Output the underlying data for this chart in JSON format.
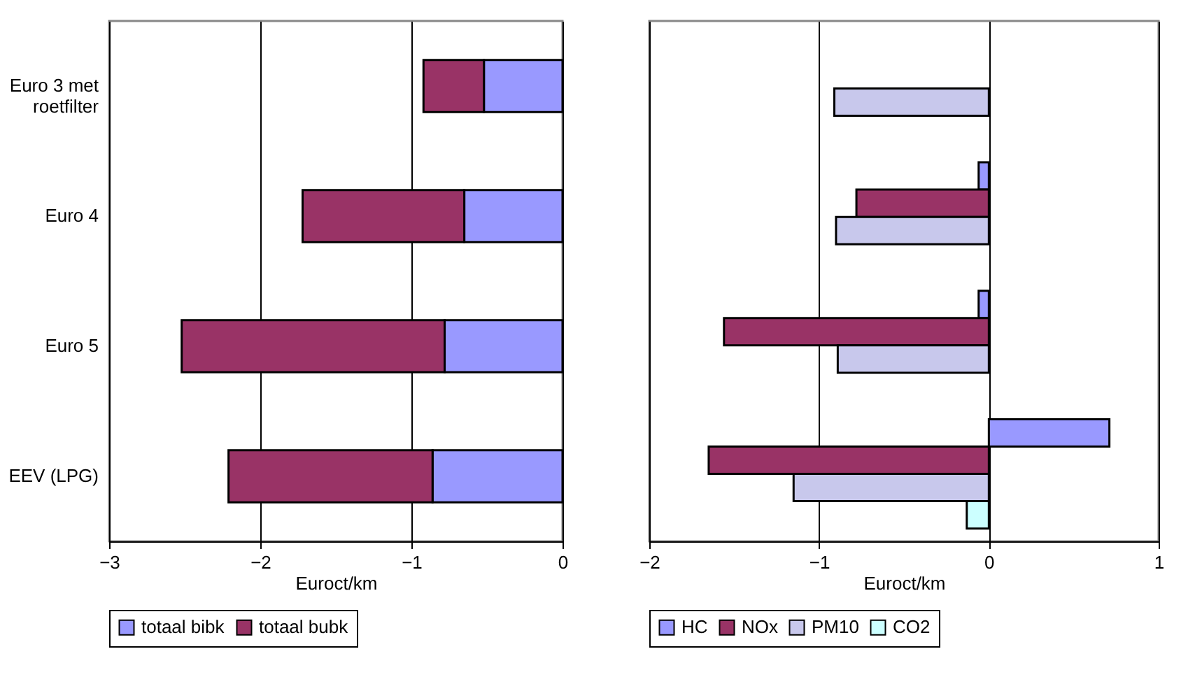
{
  "chart_data": [
    {
      "type": "bar",
      "orientation": "horizontal",
      "stacked": true,
      "xlabel": "Euroct/km",
      "categories": [
        "Euro 3 met roetfilter",
        "Euro 4",
        "Euro 5",
        "EEV (LPG)"
      ],
      "series": [
        {
          "name": "totaal bibk",
          "color": "#9999ff",
          "values": [
            -0.52,
            -0.65,
            -0.78,
            -0.86
          ]
        },
        {
          "name": "totaal bubk",
          "color": "#993366",
          "values": [
            -0.4,
            -1.07,
            -1.74,
            -1.35
          ]
        }
      ],
      "xlim": [
        -3,
        0
      ],
      "xticks": [
        -3,
        -2,
        -1,
        0
      ],
      "grid": "x",
      "legend": "bottom"
    },
    {
      "type": "bar",
      "orientation": "horizontal",
      "xlabel": "Euroct/km",
      "categories": [
        null,
        null,
        null,
        null
      ],
      "series": [
        {
          "name": "HC",
          "color": "#9999ff",
          "values": [
            null,
            -0.06,
            -0.06,
            0.71
          ]
        },
        {
          "name": "NOx",
          "color": "#993366",
          "values": [
            null,
            -0.78,
            -1.56,
            -1.65
          ]
        },
        {
          "name": "PM10",
          "color": "#c8c8ec",
          "values": [
            -0.91,
            -0.9,
            -0.89,
            -1.15
          ]
        },
        {
          "name": "CO2",
          "color": "#ccffff",
          "values": [
            null,
            null,
            null,
            -0.13
          ]
        }
      ],
      "xlim": [
        -2,
        1
      ],
      "xticks": [
        -2,
        -1,
        0,
        1
      ],
      "grid": "x",
      "legend": "bottom"
    }
  ]
}
